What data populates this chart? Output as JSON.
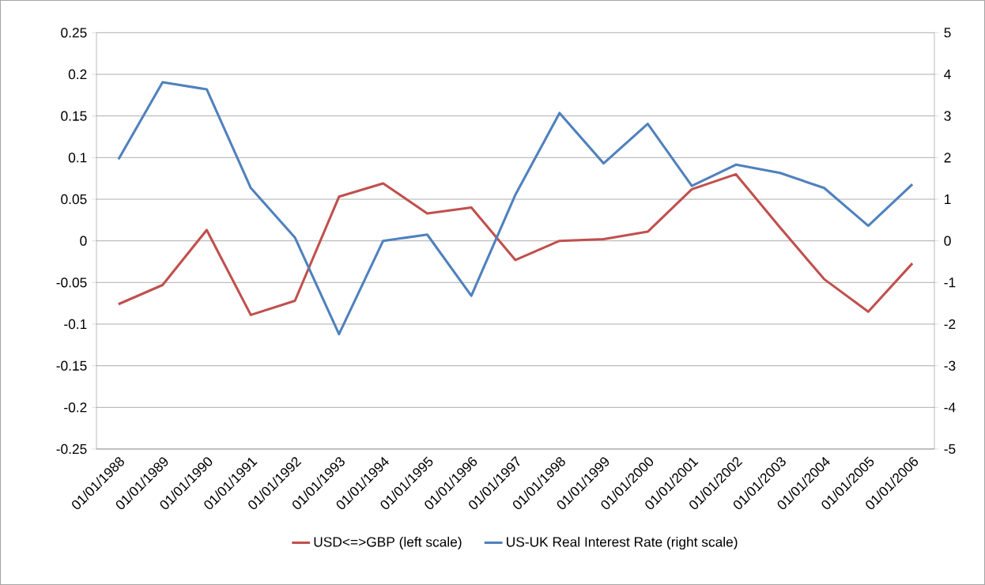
{
  "chart_data": {
    "type": "line",
    "categories": [
      "01/01/1988",
      "01/01/1989",
      "01/01/1990",
      "01/01/1991",
      "01/01/1992",
      "01/01/1993",
      "01/01/1994",
      "01/01/1995",
      "01/01/1996",
      "01/01/1997",
      "01/01/1998",
      "01/01/1999",
      "01/01/2000",
      "01/01/2001",
      "01/01/2002",
      "01/01/2003",
      "01/01/2004",
      "01/01/2005",
      "01/01/2006"
    ],
    "series": [
      {
        "name": "USD<=>GBP (left scale)",
        "color": "#c0504d",
        "values": [
          -0.076,
          -0.053,
          0.013,
          -0.089,
          -0.072,
          0.053,
          0.069,
          0.033,
          0.04,
          -0.023,
          0.0,
          0.002,
          0.011,
          0.062,
          0.08,
          0.016,
          -0.046,
          -0.085,
          -0.027
        ]
      },
      {
        "name": "US-UK Real Interest Rate (right scale)",
        "color": "#4f81bd",
        "axis": "y2",
        "values": [
          1.96,
          3.81,
          3.64,
          1.27,
          0.08,
          -2.24,
          0.0,
          0.15,
          -1.32,
          1.11,
          3.07,
          1.86,
          2.81,
          1.32,
          1.83,
          1.63,
          1.27,
          0.36,
          1.36
        ]
      }
    ],
    "ylim": [
      -0.25,
      0.25
    ],
    "yticks": [
      -0.25,
      -0.2,
      -0.15,
      -0.1,
      -0.05,
      0,
      0.05,
      0.1,
      0.15,
      0.2,
      0.25
    ],
    "y2lim": [
      -5,
      5
    ],
    "y2ticks": [
      -5,
      -4,
      -3,
      -2,
      -1,
      0,
      1,
      2,
      3,
      4,
      5
    ],
    "grid": "y",
    "legend": "bottom"
  }
}
